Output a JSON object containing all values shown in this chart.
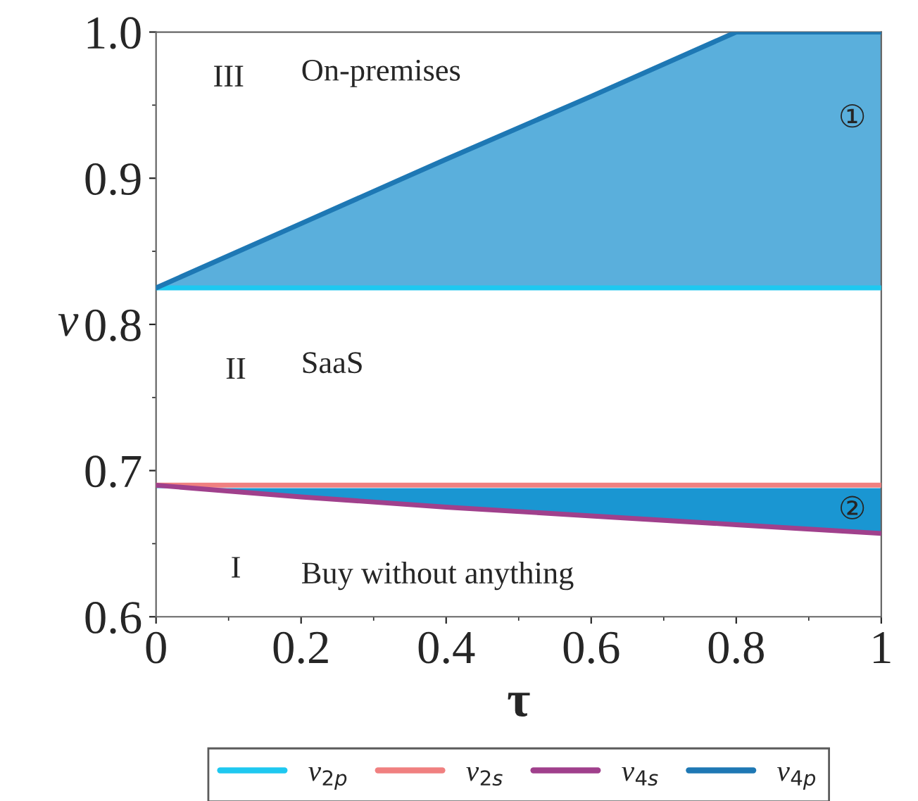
{
  "chart_data": {
    "type": "line",
    "xlabel": "τ",
    "ylabel": "v",
    "x": [
      0,
      0.2,
      0.4,
      0.6,
      0.8,
      1.0
    ],
    "xlim": [
      0,
      1
    ],
    "ylim": [
      0.6,
      1.0
    ],
    "xticks": [
      0,
      0.2,
      0.4,
      0.6,
      0.8,
      1
    ],
    "yticks": [
      {
        "value": 0.6,
        "label": "0.6"
      },
      {
        "value": 0.7,
        "label": "0.7"
      },
      {
        "value": 0.8,
        "label": "0.8"
      },
      {
        "value": 0.9,
        "label": "0.9"
      },
      {
        "value": 1.0,
        "label": "1.0"
      }
    ],
    "series": [
      {
        "name": "v$_{2p}$",
        "color": "#1ec8f0",
        "values": [
          0.825,
          0.825,
          0.825,
          0.825,
          0.825,
          0.825
        ]
      },
      {
        "name": "v$_{2s}$",
        "color": "#f08080",
        "values": [
          0.69,
          0.69,
          0.69,
          0.69,
          0.69,
          0.69
        ]
      },
      {
        "name": "v$_{4s}$",
        "color": "#a0408c",
        "values": [
          0.69,
          0.682,
          0.675,
          0.669,
          0.663,
          0.657
        ],
        "lower": [
          0.69,
          0.682,
          0.675,
          0.669,
          0.663,
          0.657
        ],
        "upper": [
          0.688,
          0.688,
          0.688,
          0.688,
          0.688,
          0.688
        ]
      },
      {
        "name": "v$_{4p}$",
        "color": "#1e78b4",
        "values": [
          0.825,
          0.869,
          0.913,
          0.956,
          1.0,
          1.0
        ],
        "lower": [
          0.825,
          0.825,
          0.825,
          0.825,
          0.825,
          0.825
        ],
        "upper": [
          0.825,
          0.869,
          0.913,
          0.956,
          1.0,
          1.0
        ]
      }
    ],
    "annotations": [
      "III",
      "On-premises",
      "①",
      "II",
      "SaaS",
      "②",
      "I",
      "Buy without anything"
    ],
    "legend": "bottom",
    "marker": "none",
    "line_style": "solid",
    "grid": false
  }
}
